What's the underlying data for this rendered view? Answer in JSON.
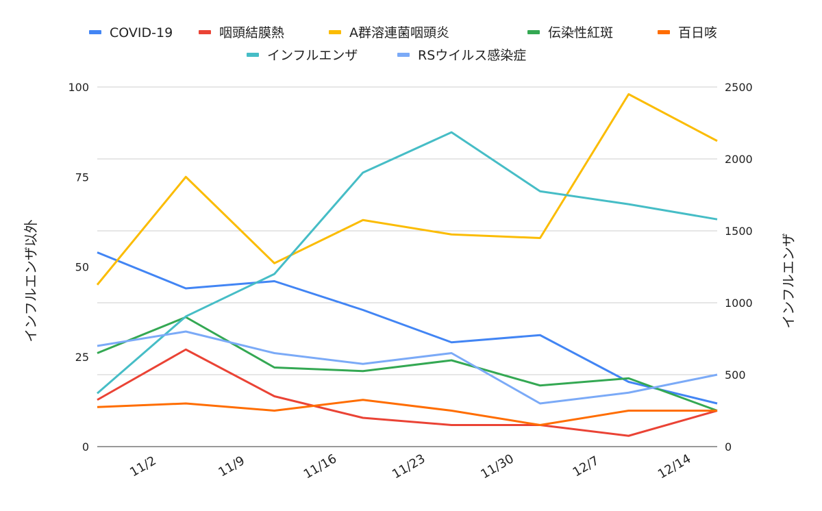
{
  "chart_data": {
    "type": "line",
    "x": [
      "",
      "11/2",
      "11/9",
      "11/16",
      "11/23",
      "11/30",
      "12/7",
      "12/14"
    ],
    "xtick_labels": [
      "11/2",
      "11/9",
      "11/16",
      "11/23",
      "11/30",
      "12/7",
      "12/14"
    ],
    "ylabel_left": "インフルエンザ以外",
    "ylabel_right": "インフルエンザ",
    "ylim_left": [
      0,
      100
    ],
    "ylim_right": [
      0,
      2500
    ],
    "yticks_left": [
      0,
      25,
      50,
      75,
      100
    ],
    "yticks_right": [
      0,
      500,
      1000,
      1500,
      2000,
      2500
    ],
    "grid": true,
    "legend_position": "top",
    "series": [
      {
        "name": "COVID-19",
        "color": "#4285f4",
        "axis": "left",
        "values": [
          54,
          44,
          46,
          38,
          29,
          31,
          18,
          12
        ]
      },
      {
        "name": "咽頭結膜熱",
        "color": "#ea4335",
        "axis": "left",
        "values": [
          13,
          27,
          14,
          8,
          6,
          6,
          3,
          10
        ]
      },
      {
        "name": "A群溶連菌咽頭炎",
        "color": "#fbbc04",
        "axis": "left",
        "values": [
          45,
          75,
          51,
          63,
          59,
          58,
          98,
          85
        ]
      },
      {
        "name": "伝染性紅斑",
        "color": "#34a853",
        "axis": "left",
        "values": [
          26,
          36,
          22,
          21,
          24,
          17,
          19,
          10
        ]
      },
      {
        "name": "百日咳",
        "color": "#ff6d01",
        "axis": "left",
        "values": [
          11,
          12,
          10,
          13,
          10,
          6,
          10,
          10
        ]
      },
      {
        "name": "インフルエンザ",
        "color": "#46bdc6",
        "axis": "right",
        "values": [
          370,
          905,
          1200,
          1905,
          2185,
          1775,
          1685,
          1580
        ]
      },
      {
        "name": "RSウイルス感染症",
        "color": "#7baaf7",
        "axis": "left",
        "values": [
          28,
          32,
          26,
          23,
          26,
          12,
          15,
          20
        ]
      }
    ]
  }
}
